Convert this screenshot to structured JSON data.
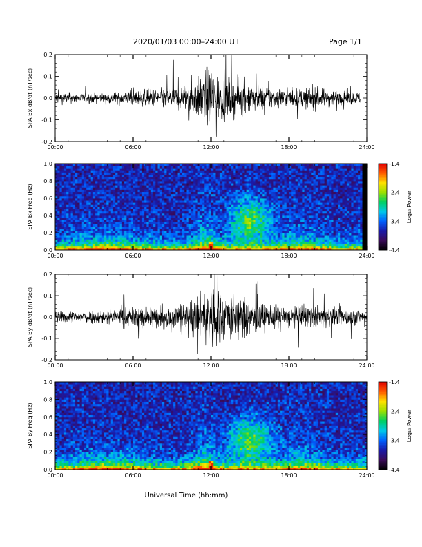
{
  "header": {
    "title": "2020/01/03  00:00–24:00 UT",
    "page": "Page 1/1"
  },
  "xlabel": "Universal Time (hh:mm)",
  "colors": {
    "background": "#ffffff",
    "trace": "#000000",
    "colorscale": [
      "#000000",
      "#3a0b58",
      "#1a1aa8",
      "#0060ff",
      "#00c8e8",
      "#00d060",
      "#9de000",
      "#ffe000",
      "#ff5a00",
      "#e00000"
    ]
  },
  "chart_data": [
    {
      "type": "line",
      "ylabel": "SPA Bx dB/dt (nT/sec)",
      "xlim": [
        0,
        24
      ],
      "xticks": [
        "00:00",
        "06:00",
        "12:00",
        "18:00",
        "24:00"
      ],
      "ylim": [
        -0.2,
        0.2
      ],
      "yticks": [
        "-0.2",
        "-0.1",
        "0.0",
        "0.1",
        "0.2"
      ],
      "series": [
        {
          "x": [
            0,
            2,
            4,
            6,
            8,
            10,
            11,
            12,
            12.5,
            14,
            16,
            18,
            20,
            22,
            23.5
          ],
          "amplitude": [
            0.04,
            0.03,
            0.035,
            0.05,
            0.06,
            0.09,
            0.13,
            0.22,
            0.15,
            0.12,
            0.08,
            0.06,
            0.07,
            0.05,
            0.04
          ]
        }
      ]
    },
    {
      "type": "heatmap",
      "ylabel": "SPA Bx Freq (Hz)",
      "xlim": [
        0,
        24
      ],
      "xticks": [
        "00:00",
        "06:00",
        "12:00",
        "18:00",
        "24:00"
      ],
      "ylim": [
        0,
        1.0
      ],
      "yticks": [
        "0.0",
        "0.2",
        "0.4",
        "0.6",
        "0.8",
        "1.0"
      ],
      "colorbar": {
        "label": "Log₁₀ Power",
        "ticks": [
          "-1.4",
          "-2.4",
          "-3.4",
          "-4.4"
        ],
        "range": [
          -4.4,
          -1.4
        ]
      }
    },
    {
      "type": "line",
      "ylabel": "SPA By dB/dt (nT/sec)",
      "xlim": [
        0,
        24
      ],
      "xticks": [
        "00:00",
        "06:00",
        "12:00",
        "18:00",
        "24:00"
      ],
      "ylim": [
        -0.2,
        0.2
      ],
      "yticks": [
        "-0.2",
        "-0.1",
        "0.0",
        "0.1",
        "0.2"
      ],
      "series": [
        {
          "x": [
            0,
            2,
            4,
            6,
            8,
            10,
            11,
            12,
            12.5,
            14,
            16,
            18,
            20,
            22,
            24
          ],
          "amplitude": [
            0.04,
            0.04,
            0.05,
            0.07,
            0.08,
            0.1,
            0.14,
            0.25,
            0.2,
            0.15,
            0.09,
            0.07,
            0.08,
            0.06,
            0.05
          ]
        }
      ]
    },
    {
      "type": "heatmap",
      "ylabel": "SPA By Freq (Hz)",
      "xlim": [
        0,
        24
      ],
      "xticks": [
        "00:00",
        "06:00",
        "12:00",
        "18:00",
        "24:00"
      ],
      "ylim": [
        0,
        1.0
      ],
      "yticks": [
        "0.0",
        "0.2",
        "0.4",
        "0.6",
        "0.8",
        "1.0"
      ],
      "colorbar": {
        "label": "Log₁₀ Power",
        "ticks": [
          "-1.4",
          "-2.4",
          "-3.4",
          "-4.4"
        ],
        "range": [
          -4.4,
          -1.4
        ]
      }
    }
  ]
}
